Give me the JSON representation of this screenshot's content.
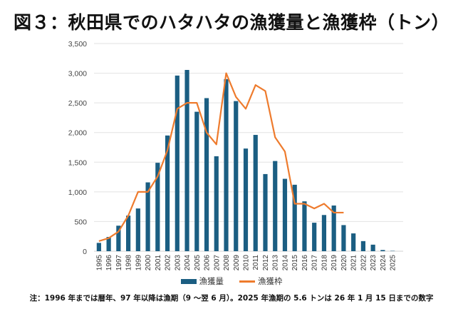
{
  "colors": {
    "bar": "#1b5e82",
    "line": "#ee7b2d",
    "grid": "#e2e2e2",
    "axis": "#d0d0d0"
  },
  "chart_data": {
    "type": "bar",
    "title": "図３：秋田県でのハタハタの漁獲量と漁獲枠（トン）",
    "xlabel": "",
    "ylabel": "",
    "ylim": [
      0,
      3500
    ],
    "yticks": [
      0,
      500,
      1000,
      1500,
      2000,
      2500,
      3000,
      3500
    ],
    "ytick_labels": [
      "0",
      "500",
      "1,000",
      "1,500",
      "2,000",
      "2,500",
      "3,000",
      "3,500"
    ],
    "grid": true,
    "legend_position": "bottom",
    "categories": [
      "1995",
      "1996",
      "1997",
      "1998",
      "1999",
      "2000",
      "2001",
      "2002",
      "2003",
      "2004",
      "2005",
      "2006",
      "2007",
      "2008",
      "2009",
      "2010",
      "2011",
      "2012",
      "2013",
      "2014",
      "2015",
      "2016",
      "2017",
      "2018",
      "2019",
      "2020",
      "2021",
      "2022",
      "2023",
      "2024",
      "2025"
    ],
    "series": [
      {
        "name": "漁獲量",
        "type": "bar",
        "values": [
          140,
          240,
          430,
          600,
          720,
          1160,
          1490,
          1950,
          2960,
          3055,
          2350,
          2580,
          1600,
          2900,
          2530,
          1730,
          1960,
          1300,
          1520,
          1220,
          1120,
          840,
          480,
          610,
          770,
          440,
          300,
          170,
          110,
          20,
          5.6
        ]
      },
      {
        "name": "漁獲枠",
        "type": "line",
        "values": [
          170,
          220,
          330,
          600,
          1000,
          1000,
          1260,
          1700,
          2400,
          2500,
          2500,
          2000,
          1800,
          3000,
          2600,
          2400,
          2800,
          2700,
          1920,
          1680,
          800,
          800,
          720,
          800,
          650,
          650,
          null,
          null,
          null,
          null,
          null
        ]
      }
    ]
  },
  "footnote": "注：1996 年までは暦年、97 年以降は漁期（9 ～翌 6 月）。2025 年漁期の 5.6 トンは 26 年 1 月 15 日までの数字"
}
